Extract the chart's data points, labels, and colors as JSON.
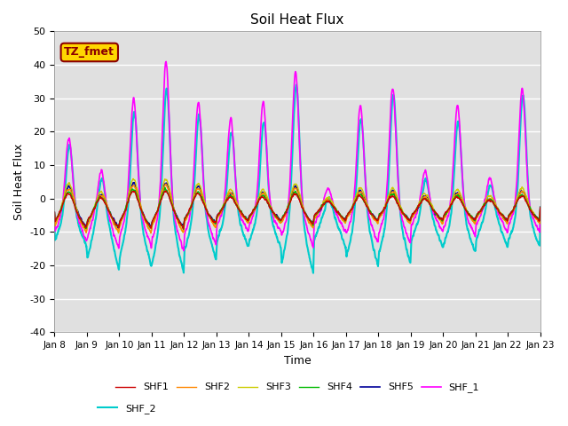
{
  "title": "Soil Heat Flux",
  "ylabel": "Soil Heat Flux",
  "xlabel": "Time",
  "ylim": [
    -40,
    50
  ],
  "annotation": "TZ_fmet",
  "annotation_bg": "#FFD700",
  "annotation_border": "#8B0000",
  "bg_color": "#E0E0E0",
  "series": {
    "SHF1": {
      "color": "#CC0000",
      "lw": 1.0
    },
    "SHF2": {
      "color": "#FF8800",
      "lw": 1.0
    },
    "SHF3": {
      "color": "#CCCC00",
      "lw": 1.0
    },
    "SHF4": {
      "color": "#00BB00",
      "lw": 1.0
    },
    "SHF5": {
      "color": "#000099",
      "lw": 1.2
    },
    "SHF_1": {
      "color": "#FF00FF",
      "lw": 1.2
    },
    "SHF_2": {
      "color": "#00CCCC",
      "lw": 1.5
    }
  },
  "xtick_labels": [
    "Jan 8",
    "Jan 9",
    "Jan 10",
    "Jan 11",
    "Jan 12",
    "Jan 13",
    "Jan 14",
    "Jan 15",
    "Jan 16",
    "Jan 17",
    "Jan 18",
    "Jan 19",
    "Jan 20",
    "Jan 21",
    "Jan 22",
    "Jan 23"
  ],
  "ytick_labels": [
    -40,
    -30,
    -20,
    -10,
    0,
    10,
    20,
    30,
    40,
    50
  ],
  "legend_order": [
    "SHF1",
    "SHF2",
    "SHF3",
    "SHF4",
    "SHF5",
    "SHF_1",
    "SHF_2"
  ]
}
